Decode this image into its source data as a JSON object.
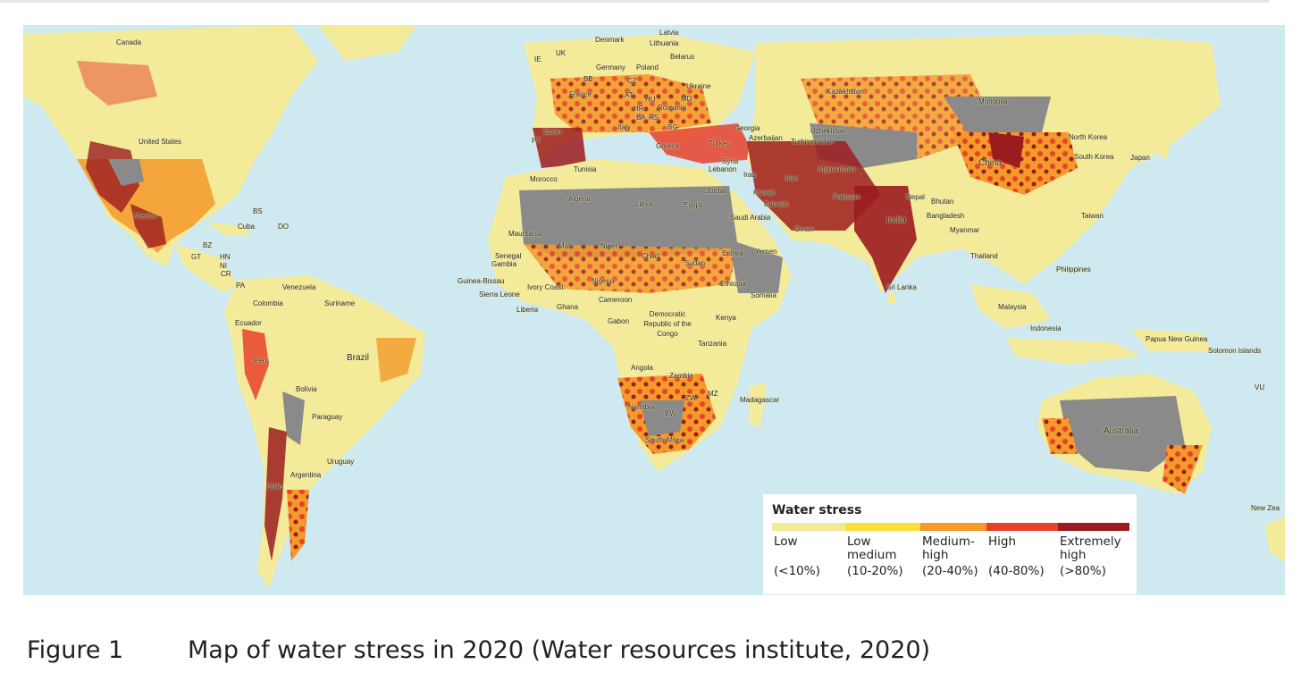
{
  "legend": {
    "title": "Water stress",
    "items": [
      {
        "label_lines": [
          "Low"
        ],
        "range": "(<10%)",
        "color": "#f3ea9a"
      },
      {
        "label_lines": [
          "Low",
          "medium"
        ],
        "range": "(10-20%)",
        "color": "#f7e03a"
      },
      {
        "label_lines": [
          "Medium-",
          "high"
        ],
        "range": "(20-40%)",
        "color": "#f39a2a"
      },
      {
        "label_lines": [
          "High"
        ],
        "range": "(40-80%)",
        "color": "#e8412b"
      },
      {
        "label_lines": [
          "Extremely",
          "high"
        ],
        "range": "(>80%)",
        "color": "#9b1c1f"
      }
    ],
    "arid_color": "#8a8a8a"
  },
  "colors": {
    "ocean": "#cfe9f1",
    "ocean_shelf": "#a9d8ea",
    "land_low": "#f3ea9a"
  },
  "caption": {
    "label": "Figure 1",
    "text": "Map of water stress in 2020 (Water resources institute, 2020)"
  },
  "map_labels": [
    "Canada",
    "United States",
    "Mexico",
    "BS",
    "Cuba",
    "DO",
    "BZ",
    "GT",
    "HN",
    "NI",
    "CR",
    "PA",
    "Venezuela",
    "Colombia",
    "Suriname",
    "Ecuador",
    "Peru",
    "Brazil",
    "Bolivia",
    "Paraguay",
    "Uruguay",
    "Chile",
    "Argentina",
    "IE",
    "UK",
    "Denmark",
    "Latvia",
    "Lithuania",
    "Belarus",
    "Germany",
    "Poland",
    "CZ",
    "BE",
    "France",
    "AT",
    "HU",
    "MD",
    "HR",
    "Romania",
    "BA",
    "RS",
    "Ukraine",
    "PT",
    "Spain",
    "Italy",
    "BG",
    "Greece",
    "Turkey",
    "Georgia",
    "Azerbaijan",
    "Turkmenistan",
    "Uzbekistan",
    "Kazakhstan",
    "Mongolia",
    "China",
    "North Korea",
    "South Korea",
    "Japan",
    "Syria",
    "Lebanon",
    "Iraq",
    "Iran",
    "Afghanistan",
    "Pakistan",
    "Nepal",
    "Bhutan",
    "India",
    "Bangladesh",
    "Myanmar",
    "Taiwan",
    "Thailand",
    "Philippines",
    "Sri Lanka",
    "Malaysia",
    "Indonesia",
    "Papua New Guinea",
    "Solomon Islands",
    "VU",
    "Australia",
    "New Zea",
    "Morocco",
    "Tunisia",
    "Algeria",
    "Libya",
    "Egypt",
    "Jordan",
    "Kuwait",
    "Bahrain",
    "Saudi Arabia",
    "Oman",
    "Yemen",
    "Mauritania",
    "Mali",
    "Niger",
    "Chad",
    "Sudan",
    "Eritrea",
    "Senegal",
    "Gambia",
    "Guinea-Bissau",
    "Sierra Leone",
    "Ivory Coast",
    "Liberia",
    "Ghana",
    "Nigeria",
    "Cameroon",
    "Ethiopia",
    "Somalia",
    "Gabon",
    "Democratic Republic of the Congo",
    "Kenya",
    "Tanzania",
    "Angola",
    "Zambia",
    "MZ",
    "ZW",
    "Namibia",
    "BW",
    "South Africa",
    "Madagascar"
  ]
}
